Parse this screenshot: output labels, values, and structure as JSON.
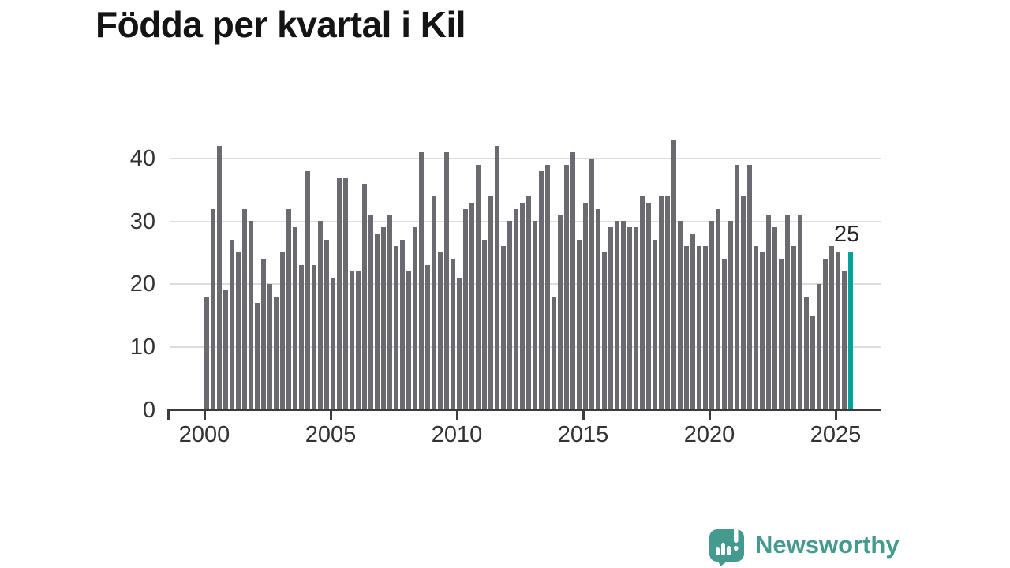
{
  "title": "Födda per kvartal i Kil",
  "annotation": {
    "label": "25"
  },
  "branding": {
    "name": "Newsworthy",
    "color": "#459a90"
  },
  "chart_data": {
    "type": "bar",
    "title": "Födda per kvartal i Kil",
    "frequency": "quarterly",
    "start_quarter": "2000-Q1",
    "end_quarter": "2025-Q3",
    "values": [
      18,
      32,
      42,
      19,
      27,
      25,
      32,
      30,
      17,
      24,
      20,
      18,
      25,
      32,
      29,
      23,
      38,
      23,
      30,
      27,
      21,
      37,
      37,
      22,
      22,
      36,
      31,
      28,
      29,
      31,
      26,
      27,
      22,
      29,
      41,
      23,
      34,
      25,
      41,
      24,
      21,
      32,
      33,
      39,
      27,
      34,
      42,
      26,
      30,
      32,
      33,
      34,
      30,
      38,
      39,
      18,
      31,
      39,
      41,
      27,
      33,
      40,
      32,
      25,
      29,
      30,
      30,
      29,
      29,
      34,
      33,
      27,
      34,
      34,
      43,
      30,
      26,
      28,
      26,
      26,
      30,
      32,
      24,
      30,
      39,
      34,
      39,
      26,
      25,
      31,
      29,
      24,
      31,
      26,
      31,
      18,
      15,
      20,
      24,
      26,
      25,
      22,
      25
    ],
    "highlight_index": 102,
    "highlight_value": 25,
    "xticks": [
      2000,
      2005,
      2010,
      2015,
      2020,
      2025
    ],
    "yticks": [
      0,
      10,
      20,
      30,
      40
    ],
    "ylim": [
      0,
      43
    ],
    "grid": true,
    "legend": "none",
    "bar_color": "#6a6a70",
    "highlight_color": "#00a29b",
    "grid_color": "#dcdcdc",
    "axis_color": "#3b3b3b",
    "label_color": "#333333"
  }
}
